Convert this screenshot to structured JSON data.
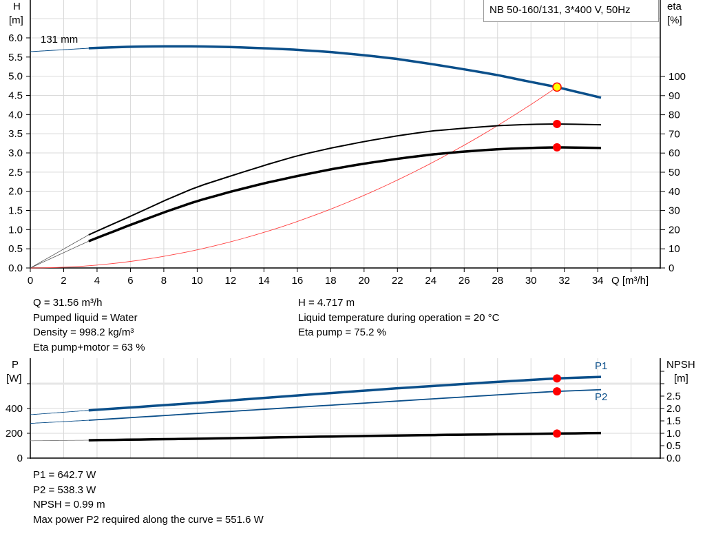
{
  "chart_data": [
    {
      "type": "line",
      "title": "NB 50-160/131, 3*400 V, 50Hz",
      "xlabel": "Q [m³/h]",
      "ylabel_left": [
        "H",
        "[m]"
      ],
      "ylabel_right": [
        "eta",
        "[%]"
      ],
      "xlim": [
        0,
        37.8
      ],
      "ylim_left": [
        0,
        7.0
      ],
      "ylim_right": [
        0,
        140
      ],
      "x_ticks": [
        "0",
        "2",
        "4",
        "6",
        "8",
        "10",
        "12",
        "14",
        "16",
        "18",
        "20",
        "22",
        "24",
        "26",
        "28",
        "30",
        "32",
        "34"
      ],
      "y_left_ticks": [
        "0.0",
        "0.5",
        "1.0",
        "1.5",
        "2.0",
        "2.5",
        "3.0",
        "3.5",
        "4.0",
        "4.5",
        "5.0",
        "5.5",
        "6.0"
      ],
      "y_right_ticks": [
        "0",
        "10",
        "20",
        "30",
        "40",
        "50",
        "60",
        "70",
        "80",
        "90",
        "100"
      ],
      "grid": true,
      "curve_label": "131 mm",
      "series": [
        {
          "key": "H",
          "axis": "left",
          "color": "#0b4f8a",
          "x": [
            0,
            3.5,
            6,
            8,
            10,
            12,
            14,
            16,
            18,
            20,
            22,
            24,
            26,
            28,
            30,
            31.56,
            34.2
          ],
          "y": [
            5.64,
            5.73,
            5.77,
            5.78,
            5.78,
            5.76,
            5.73,
            5.69,
            5.63,
            5.55,
            5.45,
            5.32,
            5.18,
            5.03,
            4.85,
            4.717,
            4.44
          ]
        },
        {
          "key": "eta_pump",
          "axis": "right",
          "color": "#000000",
          "x": [
            0,
            3.5,
            6,
            8,
            10,
            12,
            14,
            16,
            18,
            20,
            22,
            24,
            26,
            28,
            30,
            31.56,
            34.2
          ],
          "y": [
            0,
            17.3,
            27,
            35,
            42.4,
            48,
            53.5,
            58.6,
            62.6,
            66,
            69,
            71.5,
            73,
            74.3,
            75,
            75.2,
            74.8
          ]
        },
        {
          "key": "eta_pump_motor",
          "axis": "right",
          "color": "#000000",
          "x": [
            0,
            3.5,
            6,
            8,
            10,
            12,
            14,
            16,
            18,
            20,
            22,
            24,
            26,
            28,
            30,
            31.56,
            34.2
          ],
          "y": [
            0,
            14,
            22.5,
            29,
            35,
            39.8,
            44.2,
            48,
            51.5,
            54.5,
            57,
            59.2,
            60.8,
            62,
            62.7,
            63,
            62.7
          ]
        },
        {
          "key": "system",
          "axis": "left",
          "color": "#ff4040",
          "x": [
            0,
            31.56
          ],
          "y": [
            0,
            4.717
          ]
        }
      ],
      "duty_point": {
        "Q": 31.56,
        "H": 4.717,
        "eta_pump": 75.2,
        "eta_pump_motor": 63
      }
    },
    {
      "type": "line",
      "xlim": [
        0,
        37.8
      ],
      "ylabel_left": [
        "P",
        "[W]"
      ],
      "ylabel_right": [
        "NPSH",
        "[m]"
      ],
      "ylim_left": [
        0,
        800
      ],
      "ylim_right": [
        0,
        4.0
      ],
      "y_left_ticks": [
        "0",
        "200",
        "400"
      ],
      "y_right_ticks": [
        "0.0",
        "0.5",
        "1.0",
        "1.5",
        "2.0",
        "2.5"
      ],
      "grid": true,
      "series": [
        {
          "name": "P1",
          "axis": "left",
          "color": "#0b4f8a",
          "x": [
            0,
            3.5,
            10,
            16,
            22,
            28,
            31.56,
            34.2
          ],
          "y": [
            350,
            385,
            445,
            505,
            563,
            615,
            642.7,
            655
          ]
        },
        {
          "name": "P2",
          "axis": "left",
          "color": "#0b4f8a",
          "x": [
            0,
            3.5,
            10,
            16,
            22,
            28,
            31.56,
            34.2
          ],
          "y": [
            280,
            305,
            360,
            410,
            460,
            510,
            538.3,
            551.6
          ]
        },
        {
          "key": "NPSH",
          "axis": "right",
          "color": "#000000",
          "x": [
            0,
            3.5,
            10,
            16,
            22,
            28,
            31.56,
            34.2
          ],
          "y": [
            0.7,
            0.72,
            0.78,
            0.85,
            0.91,
            0.96,
            0.99,
            1.01
          ]
        }
      ]
    }
  ],
  "results_top": {
    "left": [
      "Q = 31.56 m³/h",
      "Pumped liquid = Water",
      "Density = 998.2 kg/m³",
      "Eta pump+motor = 63 %"
    ],
    "right": [
      "H = 4.717 m",
      "Liquid temperature during operation = 20 °C",
      "Eta pump = 75.2 %"
    ]
  },
  "results_bottom": [
    "P1 = 642.7 W",
    "P2 = 538.3 W",
    "NPSH = 0.99 m",
    "Max power P2 required along the curve = 551.6 W"
  ]
}
